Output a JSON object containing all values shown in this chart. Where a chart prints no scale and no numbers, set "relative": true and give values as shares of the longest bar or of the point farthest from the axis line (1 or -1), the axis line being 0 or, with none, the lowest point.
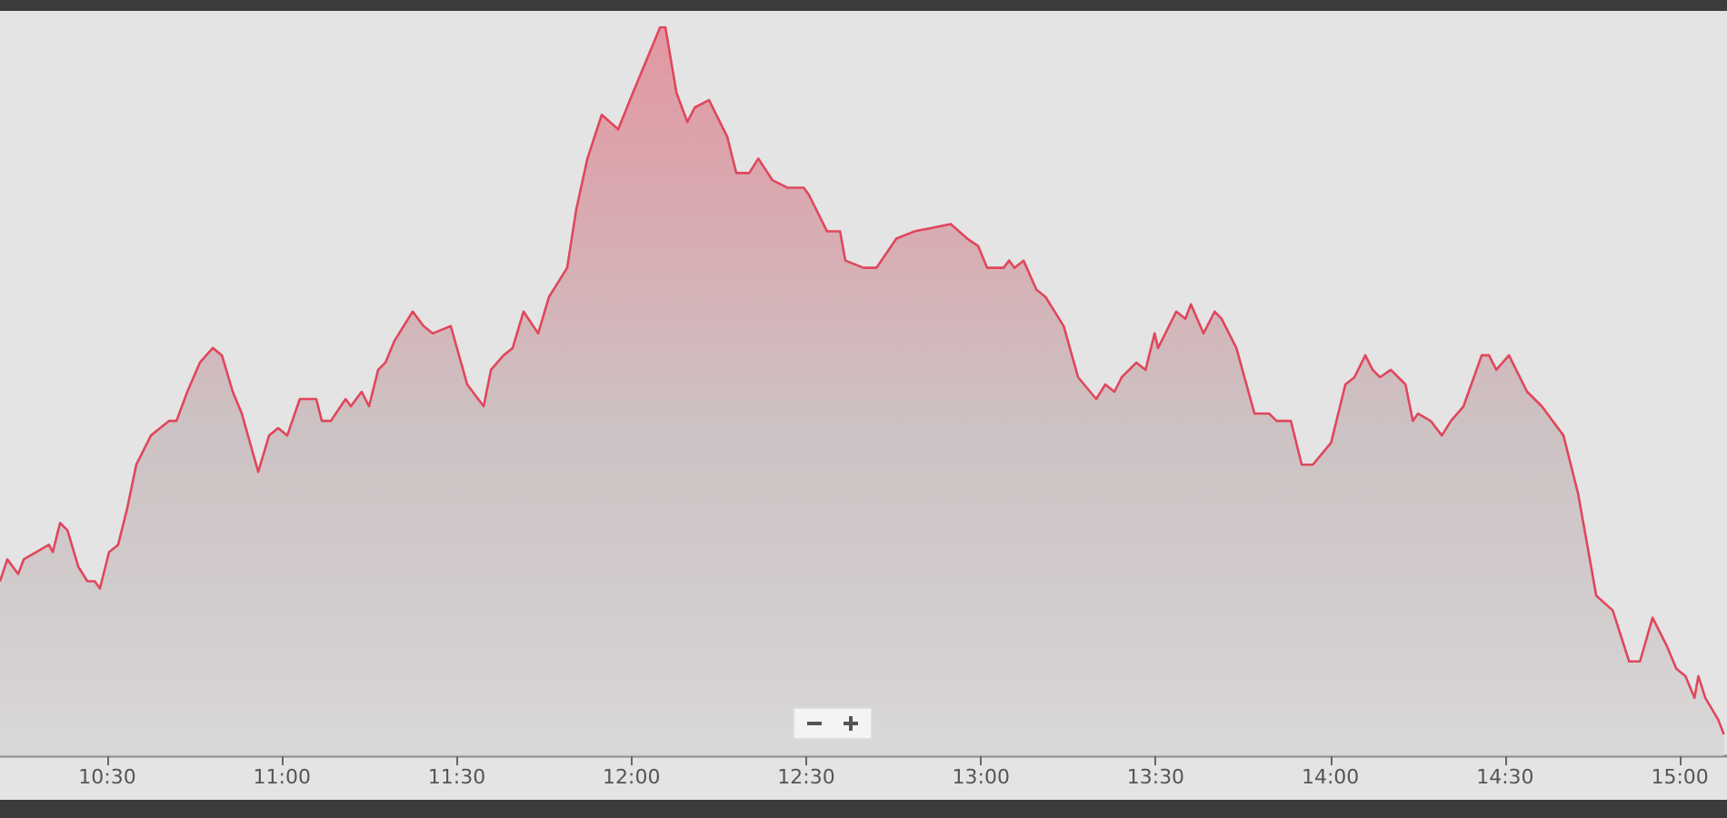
{
  "chart_data": {
    "type": "area",
    "relative": true,
    "color": "#e0475c",
    "grid": false,
    "marker": "none",
    "line_style": "solid",
    "xlim": [
      10.193,
      15.135
    ],
    "xticks": [
      {
        "value": 10.5,
        "label": "10:30"
      },
      {
        "value": 11,
        "label": "11:00"
      },
      {
        "value": 11.5,
        "label": "11:30"
      },
      {
        "value": 12,
        "label": "12:00"
      },
      {
        "value": 12.5,
        "label": "12:30"
      },
      {
        "value": 13,
        "label": "13:00"
      },
      {
        "value": 13.5,
        "label": "13:30"
      },
      {
        "value": 14,
        "label": "14:00"
      },
      {
        "value": 14.5,
        "label": "14:30"
      },
      {
        "value": 15,
        "label": "15:00"
      }
    ],
    "x": [
      10.193,
      10.214,
      10.245,
      10.261,
      10.297,
      10.333,
      10.344,
      10.365,
      10.386,
      10.417,
      10.443,
      10.464,
      10.479,
      10.505,
      10.531,
      10.557,
      10.583,
      10.625,
      10.651,
      10.677,
      10.698,
      10.729,
      10.765,
      10.802,
      10.828,
      10.859,
      10.885,
      10.932,
      10.963,
      10.989,
      11.015,
      11.051,
      11.078,
      11.098,
      11.114,
      11.14,
      11.182,
      11.197,
      11.228,
      11.249,
      11.275,
      11.296,
      11.322,
      11.374,
      11.405,
      11.431,
      11.483,
      11.53,
      11.577,
      11.598,
      11.634,
      11.66,
      11.691,
      11.733,
      11.764,
      11.816,
      11.842,
      11.874,
      11.915,
      11.962,
      12.004,
      12.082,
      12.097,
      12.129,
      12.16,
      12.181,
      12.222,
      12.274,
      12.3,
      12.337,
      12.363,
      12.404,
      12.446,
      12.493,
      12.508,
      12.56,
      12.597,
      12.612,
      12.664,
      12.701,
      12.758,
      12.81,
      12.914,
      12.961,
      12.992,
      13.018,
      13.065,
      13.081,
      13.096,
      13.122,
      13.159,
      13.185,
      13.237,
      13.278,
      13.33,
      13.356,
      13.382,
      13.403,
      13.445,
      13.471,
      13.497,
      13.507,
      13.559,
      13.585,
      13.601,
      13.637,
      13.669,
      13.689,
      13.731,
      13.783,
      13.825,
      13.846,
      13.887,
      13.918,
      13.95,
      14.002,
      14.043,
      14.069,
      14.1,
      14.121,
      14.142,
      14.173,
      14.215,
      14.236,
      14.251,
      14.287,
      14.319,
      14.345,
      14.381,
      14.433,
      14.454,
      14.475,
      14.511,
      14.563,
      14.605,
      14.667,
      14.709,
      14.761,
      14.808,
      14.855,
      14.886,
      14.922,
      14.964,
      14.99,
      15.016,
      15.042,
      15.053,
      15.073,
      15.11,
      15.126
    ],
    "values": [
      0.24,
      0.27,
      0.25,
      0.27,
      0.28,
      0.29,
      0.28,
      0.32,
      0.31,
      0.26,
      0.24,
      0.24,
      0.23,
      0.28,
      0.29,
      0.34,
      0.4,
      0.44,
      0.45,
      0.46,
      0.46,
      0.5,
      0.54,
      0.56,
      0.55,
      0.5,
      0.47,
      0.39,
      0.44,
      0.45,
      0.44,
      0.49,
      0.49,
      0.49,
      0.46,
      0.46,
      0.49,
      0.48,
      0.5,
      0.48,
      0.53,
      0.54,
      0.57,
      0.61,
      0.59,
      0.58,
      0.59,
      0.51,
      0.48,
      0.53,
      0.55,
      0.56,
      0.61,
      0.58,
      0.63,
      0.67,
      0.75,
      0.82,
      0.88,
      0.86,
      0.91,
      1.0,
      1.0,
      0.91,
      0.87,
      0.89,
      0.9,
      0.85,
      0.8,
      0.8,
      0.82,
      0.79,
      0.78,
      0.78,
      0.77,
      0.72,
      0.72,
      0.68,
      0.67,
      0.67,
      0.71,
      0.72,
      0.73,
      0.71,
      0.7,
      0.67,
      0.67,
      0.68,
      0.67,
      0.68,
      0.64,
      0.63,
      0.59,
      0.52,
      0.49,
      0.51,
      0.5,
      0.52,
      0.54,
      0.53,
      0.58,
      0.56,
      0.61,
      0.6,
      0.62,
      0.58,
      0.61,
      0.6,
      0.56,
      0.47,
      0.47,
      0.46,
      0.46,
      0.4,
      0.4,
      0.43,
      0.51,
      0.52,
      0.55,
      0.53,
      0.52,
      0.53,
      0.51,
      0.46,
      0.47,
      0.46,
      0.44,
      0.46,
      0.48,
      0.55,
      0.55,
      0.53,
      0.55,
      0.5,
      0.48,
      0.44,
      0.36,
      0.22,
      0.2,
      0.13,
      0.13,
      0.19,
      0.15,
      0.12,
      0.11,
      0.08,
      0.11,
      0.08,
      0.05,
      0.03
    ]
  }
}
